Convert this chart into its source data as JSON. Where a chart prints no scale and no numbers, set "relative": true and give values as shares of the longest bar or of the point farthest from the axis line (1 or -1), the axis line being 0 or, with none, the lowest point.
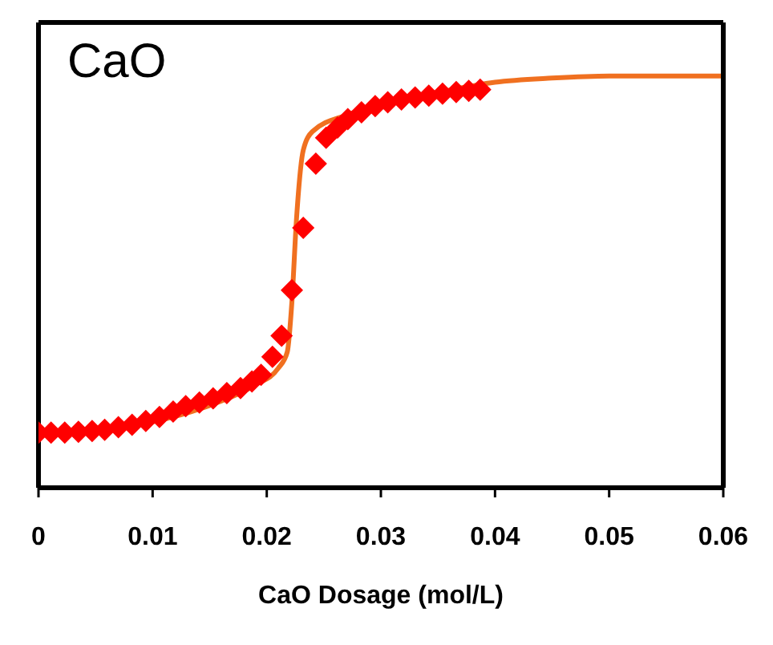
{
  "chart_data": {
    "type": "scatter",
    "title": "CaO",
    "xlabel": "CaO Dosage (mol/L)",
    "relative": true,
    "xlim": [
      0,
      0.06
    ],
    "xticks": [
      0,
      0.01,
      0.02,
      0.03,
      0.04,
      0.05,
      0.06
    ],
    "grid": false,
    "series": [
      {
        "color": "#ff0000",
        "marker": "diamond",
        "x": [
          0,
          0.0011,
          0.0023,
          0.0035,
          0.0047,
          0.0058,
          0.007,
          0.0082,
          0.0094,
          0.0106,
          0.0118,
          0.0129,
          0.0141,
          0.0153,
          0.0165,
          0.0177,
          0.0187,
          0.0195,
          0.0205,
          0.0213,
          0.0222,
          0.0232,
          0.0243,
          0.0252,
          0.0262,
          0.0271,
          0.0283,
          0.0295,
          0.0306,
          0.0318,
          0.033,
          0.0342,
          0.0354,
          0.0366,
          0.0377,
          0.0387
        ],
        "values": [
          0.134,
          0.134,
          0.134,
          0.136,
          0.138,
          0.141,
          0.147,
          0.153,
          0.162,
          0.172,
          0.185,
          0.198,
          0.207,
          0.217,
          0.23,
          0.242,
          0.258,
          0.274,
          0.318,
          0.369,
          0.48,
          0.631,
          0.787,
          0.85,
          0.875,
          0.895,
          0.912,
          0.927,
          0.936,
          0.943,
          0.948,
          0.952,
          0.957,
          0.961,
          0.964,
          0.967
        ]
      },
      {
        "type": "line",
        "color": "#f07020",
        "marker": "none",
        "x": [
          0,
          0.005,
          0.01,
          0.015,
          0.019,
          0.021,
          0.0218,
          0.0222,
          0.0226,
          0.0232,
          0.024,
          0.027,
          0.03,
          0.035,
          0.04,
          0.045,
          0.05,
          0.06
        ],
        "values": [
          0.13,
          0.14,
          0.16,
          0.2,
          0.25,
          0.29,
          0.33,
          0.45,
          0.65,
          0.82,
          0.865,
          0.905,
          0.93,
          0.96,
          0.985,
          0.995,
          1,
          1
        ]
      }
    ]
  }
}
